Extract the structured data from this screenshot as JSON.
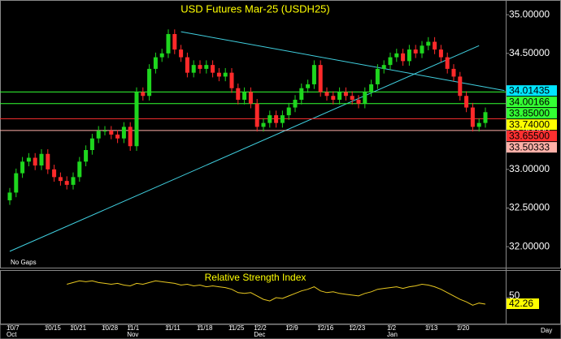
{
  "chart_data": {
    "type": "candlestick",
    "title": "USD Futures Mar-25 (USDH25)",
    "note": "No Gaps",
    "x_unit": "Day",
    "categories": [
      "10/7",
      null,
      null,
      null,
      null,
      null,
      "10/15",
      null,
      null,
      null,
      "10/21",
      null,
      null,
      null,
      null,
      "10/28",
      null,
      null,
      null,
      "11/1",
      null,
      null,
      null,
      null,
      null,
      "11/11",
      null,
      null,
      null,
      null,
      "11/18",
      null,
      null,
      null,
      null,
      "11/25",
      null,
      null,
      null,
      "12/2",
      null,
      null,
      null,
      null,
      "12/9",
      null,
      null,
      null,
      null,
      "12/16",
      null,
      null,
      null,
      null,
      "12/23",
      null,
      null,
      null,
      null,
      null,
      "1/2",
      null,
      null,
      null,
      null,
      null,
      "1/13",
      null,
      null,
      null,
      null,
      "1/20",
      null,
      null,
      null,
      null
    ],
    "month_labels": [
      "Oct",
      null,
      null,
      null,
      null,
      null,
      null,
      null,
      null,
      null,
      null,
      null,
      null,
      null,
      null,
      null,
      null,
      null,
      null,
      "Nov",
      null,
      null,
      null,
      null,
      null,
      null,
      null,
      null,
      null,
      null,
      null,
      null,
      null,
      null,
      null,
      null,
      null,
      null,
      null,
      "Dec",
      null,
      null,
      null,
      null,
      null,
      null,
      null,
      null,
      null,
      null,
      null,
      null,
      null,
      null,
      null,
      null,
      null,
      null,
      null,
      null,
      "Jan",
      null,
      null,
      null,
      null,
      null,
      null,
      null,
      null,
      null,
      null,
      null,
      null,
      null,
      null,
      null
    ],
    "open": [
      32.6,
      32.7,
      32.95,
      33.1,
      33.15,
      33.05,
      33.2,
      33.0,
      32.9,
      32.85,
      32.8,
      32.9,
      33.1,
      33.25,
      33.4,
      33.5,
      33.5,
      33.45,
      33.4,
      33.55,
      33.3,
      34.0,
      33.95,
      34.3,
      34.45,
      34.5,
      34.75,
      34.55,
      34.45,
      34.25,
      34.35,
      34.3,
      34.35,
      34.25,
      34.2,
      34.25,
      34.05,
      33.9,
      34.0,
      33.85,
      33.55,
      33.6,
      33.7,
      33.6,
      33.7,
      33.8,
      33.9,
      34.05,
      34.1,
      34.35,
      34.0,
      33.95,
      33.9,
      34.0,
      33.95,
      33.9,
      33.85,
      34.0,
      34.1,
      34.3,
      34.35,
      34.45,
      34.5,
      34.4,
      34.55,
      34.5,
      34.6,
      34.65,
      34.55,
      34.45,
      34.3,
      34.2,
      33.95,
      33.8,
      33.55,
      33.6
    ],
    "high": [
      32.76,
      33.01,
      33.16,
      33.21,
      33.21,
      33.26,
      33.26,
      33.06,
      32.96,
      32.91,
      32.96,
      33.16,
      33.31,
      33.46,
      33.56,
      33.56,
      33.56,
      33.51,
      33.61,
      33.61,
      34.06,
      34.06,
      34.36,
      34.51,
      34.56,
      34.81,
      34.81,
      34.61,
      34.51,
      34.41,
      34.41,
      34.41,
      34.41,
      34.31,
      34.31,
      34.31,
      34.11,
      34.06,
      34.06,
      33.91,
      33.66,
      33.76,
      33.76,
      33.76,
      33.86,
      33.96,
      34.11,
      34.16,
      34.41,
      34.41,
      34.06,
      34.01,
      34.06,
      34.06,
      34.01,
      33.96,
      34.06,
      34.16,
      34.36,
      34.41,
      34.51,
      34.56,
      34.56,
      34.61,
      34.61,
      34.66,
      34.71,
      34.71,
      34.61,
      34.51,
      34.36,
      34.26,
      34.01,
      33.86,
      33.66,
      33.8
    ],
    "low": [
      32.54,
      32.64,
      32.89,
      33.04,
      32.99,
      32.99,
      32.94,
      32.84,
      32.79,
      32.74,
      32.74,
      32.84,
      33.04,
      33.19,
      33.34,
      33.44,
      33.39,
      33.34,
      33.34,
      33.24,
      33.24,
      33.89,
      33.89,
      34.24,
      34.39,
      34.44,
      34.49,
      34.39,
      34.19,
      34.19,
      34.24,
      34.24,
      34.19,
      34.14,
      34.14,
      33.99,
      33.84,
      33.84,
      33.79,
      33.49,
      33.49,
      33.54,
      33.54,
      33.54,
      33.64,
      33.74,
      33.84,
      33.99,
      34.04,
      33.94,
      33.89,
      33.84,
      33.84,
      33.89,
      33.84,
      33.79,
      33.79,
      33.94,
      34.04,
      34.24,
      34.29,
      34.39,
      34.34,
      34.34,
      34.44,
      34.44,
      34.54,
      34.49,
      34.39,
      34.24,
      34.14,
      33.89,
      33.74,
      33.49,
      33.49,
      33.54
    ],
    "close": [
      32.7,
      32.95,
      33.1,
      33.15,
      33.05,
      33.2,
      33.0,
      32.9,
      32.85,
      32.8,
      32.9,
      33.1,
      33.25,
      33.4,
      33.5,
      33.5,
      33.45,
      33.4,
      33.55,
      33.3,
      34.0,
      33.95,
      34.3,
      34.45,
      34.5,
      34.75,
      34.55,
      34.45,
      34.25,
      34.35,
      34.3,
      34.35,
      34.25,
      34.2,
      34.25,
      34.05,
      33.9,
      34.0,
      33.85,
      33.55,
      33.6,
      33.7,
      33.6,
      33.7,
      33.8,
      33.9,
      34.05,
      34.1,
      34.35,
      34.0,
      33.95,
      33.9,
      34.0,
      33.95,
      33.9,
      33.85,
      34.0,
      34.1,
      34.3,
      34.35,
      34.45,
      34.5,
      34.4,
      34.55,
      34.5,
      34.6,
      34.65,
      34.55,
      34.45,
      34.3,
      34.2,
      33.95,
      33.8,
      33.55,
      33.6,
      33.74
    ],
    "up_color": "#1ed61e",
    "down_color": "#ff2a2a",
    "ylim": [
      31.75,
      35.18
    ],
    "yticks": [
      {
        "value": 35,
        "label": "35.00000"
      },
      {
        "value": 34.5,
        "label": "34.50000"
      },
      {
        "value": 34,
        "label": "34.00000"
      },
      {
        "value": 33.5,
        "label": "33.50000"
      },
      {
        "value": 33,
        "label": "33.00000"
      },
      {
        "value": 32.5,
        "label": "32.50000"
      },
      {
        "value": 32,
        "label": "32.00000"
      }
    ],
    "levels": [
      {
        "value": 34.01435,
        "label": "34.01435",
        "color": "#00e5ff",
        "line": false
      },
      {
        "value": 34.00166,
        "label": "34.00166",
        "color": "#33ff33",
        "line": true
      },
      {
        "value": 33.85,
        "label": "33.85000",
        "color": "#33ff33",
        "line": true
      },
      {
        "value": 33.74,
        "label": "33.74000",
        "color": "#ffff00",
        "line": false
      },
      {
        "value": 33.655,
        "label": "33.65500",
        "color": "#ff3030",
        "line": true
      },
      {
        "value": 33.50333,
        "label": "33.50333",
        "color": "#ffb0a8",
        "line": true
      }
    ],
    "trendlines": [
      {
        "start": [
          27,
          34.78
        ],
        "end": [
          78,
          34.02
        ],
        "color": "#40d0e0"
      },
      {
        "start": [
          0,
          31.94
        ],
        "end": [
          74,
          34.6
        ],
        "color": "#40d0e0"
      }
    ],
    "rsi": {
      "title": "Relative Strength Index",
      "color": "#e8c820",
      "ylim": [
        20,
        80
      ],
      "yticks": [
        50
      ],
      "values": [
        null,
        null,
        null,
        null,
        null,
        null,
        null,
        null,
        null,
        66,
        68,
        70,
        69,
        70,
        68,
        67,
        66,
        67,
        65,
        64,
        67,
        66,
        68,
        70,
        69,
        68,
        67,
        65,
        66,
        64,
        65,
        63,
        64,
        63,
        62,
        60,
        56,
        55,
        56,
        52,
        48,
        46,
        50,
        49,
        52,
        55,
        58,
        60,
        63,
        58,
        56,
        57,
        55,
        54,
        53,
        52,
        55,
        57,
        60,
        61,
        62,
        63,
        61,
        63,
        64,
        66,
        65,
        63,
        60,
        56,
        52,
        48,
        45,
        41,
        43.5,
        42.26
      ]
    }
  }
}
